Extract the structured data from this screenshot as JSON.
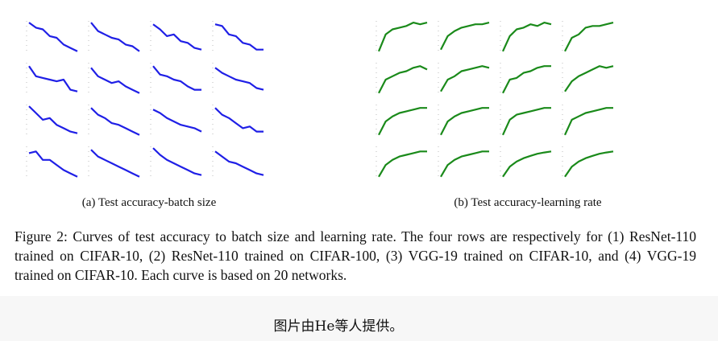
{
  "chart_data": [
    {
      "type": "line",
      "color": "#1f1fe6",
      "x": [
        1,
        2,
        3,
        4,
        5,
        6,
        7,
        8
      ],
      "values": [
        0.95,
        0.8,
        0.75,
        0.55,
        0.5,
        0.3,
        0.2,
        0.1
      ],
      "xlim": [
        1,
        8
      ],
      "ylim": [
        0,
        1
      ]
    },
    {
      "type": "line",
      "color": "#1f1fe6",
      "x": [
        1,
        2,
        3,
        4,
        5,
        6,
        7,
        8
      ],
      "values": [
        0.95,
        0.7,
        0.6,
        0.5,
        0.45,
        0.3,
        0.25,
        0.1
      ],
      "xlim": [
        1,
        8
      ],
      "ylim": [
        0,
        1
      ]
    },
    {
      "type": "line",
      "color": "#1f1fe6",
      "x": [
        1,
        2,
        3,
        4,
        5,
        6,
        7,
        8
      ],
      "values": [
        0.9,
        0.75,
        0.55,
        0.6,
        0.4,
        0.35,
        0.2,
        0.15
      ],
      "xlim": [
        1,
        8
      ],
      "ylim": [
        0,
        1
      ]
    },
    {
      "type": "line",
      "color": "#1f1fe6",
      "x": [
        1,
        2,
        3,
        4,
        5,
        6,
        7,
        8
      ],
      "values": [
        0.9,
        0.85,
        0.6,
        0.55,
        0.35,
        0.3,
        0.15,
        0.15
      ],
      "xlim": [
        1,
        8
      ],
      "ylim": [
        0,
        1
      ]
    },
    {
      "type": "line",
      "color": "#1f1fe6",
      "x": [
        1,
        2,
        3,
        4,
        5,
        6,
        7,
        8
      ],
      "values": [
        0.9,
        0.6,
        0.55,
        0.5,
        0.45,
        0.5,
        0.2,
        0.15
      ],
      "xlim": [
        1,
        8
      ],
      "ylim": [
        0,
        1
      ]
    },
    {
      "type": "line",
      "color": "#1f1fe6",
      "x": [
        1,
        2,
        3,
        4,
        5,
        6,
        7,
        8
      ],
      "values": [
        0.85,
        0.6,
        0.5,
        0.4,
        0.45,
        0.3,
        0.2,
        0.1
      ],
      "xlim": [
        1,
        8
      ],
      "ylim": [
        0,
        1
      ]
    },
    {
      "type": "line",
      "color": "#1f1fe6",
      "x": [
        1,
        2,
        3,
        4,
        5,
        6,
        7,
        8
      ],
      "values": [
        0.9,
        0.65,
        0.6,
        0.5,
        0.45,
        0.3,
        0.2,
        0.2
      ],
      "xlim": [
        1,
        8
      ],
      "ylim": [
        0,
        1
      ]
    },
    {
      "type": "line",
      "color": "#1f1fe6",
      "x": [
        1,
        2,
        3,
        4,
        5,
        6,
        7,
        8
      ],
      "values": [
        0.85,
        0.7,
        0.6,
        0.5,
        0.45,
        0.4,
        0.25,
        0.2
      ],
      "xlim": [
        1,
        8
      ],
      "ylim": [
        0,
        1
      ]
    },
    {
      "type": "line",
      "color": "#1f1fe6",
      "x": [
        1,
        2,
        3,
        4,
        5,
        6,
        7,
        8
      ],
      "values": [
        0.95,
        0.75,
        0.55,
        0.6,
        0.4,
        0.3,
        0.2,
        0.15
      ],
      "xlim": [
        1,
        8
      ],
      "ylim": [
        0,
        1
      ]
    },
    {
      "type": "line",
      "color": "#1f1fe6",
      "x": [
        1,
        2,
        3,
        4,
        5,
        6,
        7,
        8
      ],
      "values": [
        0.9,
        0.7,
        0.6,
        0.45,
        0.4,
        0.3,
        0.2,
        0.1
      ],
      "xlim": [
        1,
        8
      ],
      "ylim": [
        0,
        1
      ]
    },
    {
      "type": "line",
      "color": "#1f1fe6",
      "x": [
        1,
        2,
        3,
        4,
        5,
        6,
        7,
        8
      ],
      "values": [
        0.85,
        0.75,
        0.6,
        0.5,
        0.4,
        0.35,
        0.3,
        0.2
      ],
      "xlim": [
        1,
        8
      ],
      "ylim": [
        0,
        1
      ]
    },
    {
      "type": "line",
      "color": "#1f1fe6",
      "x": [
        1,
        2,
        3,
        4,
        5,
        6,
        7,
        8
      ],
      "values": [
        0.9,
        0.7,
        0.6,
        0.45,
        0.3,
        0.35,
        0.2,
        0.2
      ],
      "xlim": [
        1,
        8
      ],
      "ylim": [
        0,
        1
      ]
    },
    {
      "type": "line",
      "color": "#1f1fe6",
      "x": [
        1,
        2,
        3,
        4,
        5,
        6,
        7,
        8
      ],
      "values": [
        0.8,
        0.85,
        0.6,
        0.6,
        0.45,
        0.3,
        0.2,
        0.1
      ],
      "xlim": [
        1,
        8
      ],
      "ylim": [
        0,
        1
      ]
    },
    {
      "type": "line",
      "color": "#1f1fe6",
      "x": [
        1,
        2,
        3,
        4,
        5,
        6,
        7,
        8
      ],
      "values": [
        0.9,
        0.7,
        0.6,
        0.5,
        0.4,
        0.3,
        0.2,
        0.1
      ],
      "xlim": [
        1,
        8
      ],
      "ylim": [
        0,
        1
      ]
    },
    {
      "type": "line",
      "color": "#1f1fe6",
      "x": [
        1,
        2,
        3,
        4,
        5,
        6,
        7,
        8
      ],
      "values": [
        0.95,
        0.75,
        0.6,
        0.5,
        0.4,
        0.3,
        0.2,
        0.15
      ],
      "xlim": [
        1,
        8
      ],
      "ylim": [
        0,
        1
      ]
    },
    {
      "type": "line",
      "color": "#1f1fe6",
      "x": [
        1,
        2,
        3,
        4,
        5,
        6,
        7,
        8
      ],
      "values": [
        0.85,
        0.7,
        0.55,
        0.5,
        0.4,
        0.3,
        0.2,
        0.15
      ],
      "xlim": [
        1,
        8
      ],
      "ylim": [
        0,
        1
      ]
    },
    {
      "type": "line",
      "color": "#1a8a1a",
      "x": [
        1,
        2,
        3,
        4,
        5,
        6,
        7,
        8
      ],
      "values": [
        0.1,
        0.6,
        0.75,
        0.8,
        0.85,
        0.95,
        0.9,
        0.95
      ],
      "xlim": [
        1,
        8
      ],
      "ylim": [
        0,
        1
      ]
    },
    {
      "type": "line",
      "color": "#1a8a1a",
      "x": [
        1,
        2,
        3,
        4,
        5,
        6,
        7,
        8
      ],
      "values": [
        0.15,
        0.55,
        0.7,
        0.8,
        0.85,
        0.9,
        0.9,
        0.95
      ],
      "xlim": [
        1,
        8
      ],
      "ylim": [
        0,
        1
      ]
    },
    {
      "type": "line",
      "color": "#1a8a1a",
      "x": [
        1,
        2,
        3,
        4,
        5,
        6,
        7,
        8
      ],
      "values": [
        0.1,
        0.55,
        0.75,
        0.8,
        0.9,
        0.85,
        0.95,
        0.9
      ],
      "xlim": [
        1,
        8
      ],
      "ylim": [
        0,
        1
      ]
    },
    {
      "type": "line",
      "color": "#1a8a1a",
      "x": [
        1,
        2,
        3,
        4,
        5,
        6,
        7,
        8
      ],
      "values": [
        0.1,
        0.5,
        0.6,
        0.8,
        0.85,
        0.85,
        0.9,
        0.95
      ],
      "xlim": [
        1,
        8
      ],
      "ylim": [
        0,
        1
      ]
    },
    {
      "type": "line",
      "color": "#1a8a1a",
      "x": [
        1,
        2,
        3,
        4,
        5,
        6,
        7,
        8
      ],
      "values": [
        0.1,
        0.5,
        0.6,
        0.7,
        0.75,
        0.85,
        0.9,
        0.8
      ],
      "xlim": [
        1,
        8
      ],
      "ylim": [
        0,
        1
      ]
    },
    {
      "type": "line",
      "color": "#1a8a1a",
      "x": [
        1,
        2,
        3,
        4,
        5,
        6,
        7,
        8
      ],
      "values": [
        0.15,
        0.5,
        0.6,
        0.75,
        0.8,
        0.85,
        0.9,
        0.85
      ],
      "xlim": [
        1,
        8
      ],
      "ylim": [
        0,
        1
      ]
    },
    {
      "type": "line",
      "color": "#1a8a1a",
      "x": [
        1,
        2,
        3,
        4,
        5,
        6,
        7,
        8
      ],
      "values": [
        0.1,
        0.5,
        0.55,
        0.7,
        0.75,
        0.85,
        0.9,
        0.9
      ],
      "xlim": [
        1,
        8
      ],
      "ylim": [
        0,
        1
      ]
    },
    {
      "type": "line",
      "color": "#1a8a1a",
      "x": [
        1,
        2,
        3,
        4,
        5,
        6,
        7,
        8
      ],
      "values": [
        0.15,
        0.45,
        0.6,
        0.7,
        0.8,
        0.9,
        0.85,
        0.9
      ],
      "xlim": [
        1,
        8
      ],
      "ylim": [
        0,
        1
      ]
    },
    {
      "type": "line",
      "color": "#1a8a1a",
      "x": [
        1,
        2,
        3,
        4,
        5,
        6,
        7,
        8
      ],
      "values": [
        0.1,
        0.5,
        0.65,
        0.75,
        0.8,
        0.85,
        0.9,
        0.9
      ],
      "xlim": [
        1,
        8
      ],
      "ylim": [
        0,
        1
      ]
    },
    {
      "type": "line",
      "color": "#1a8a1a",
      "x": [
        1,
        2,
        3,
        4,
        5,
        6,
        7,
        8
      ],
      "values": [
        0.1,
        0.5,
        0.65,
        0.75,
        0.8,
        0.85,
        0.9,
        0.9
      ],
      "xlim": [
        1,
        8
      ],
      "ylim": [
        0,
        1
      ]
    },
    {
      "type": "line",
      "color": "#1a8a1a",
      "x": [
        1,
        2,
        3,
        4,
        5,
        6,
        7,
        8
      ],
      "values": [
        0.1,
        0.55,
        0.7,
        0.75,
        0.8,
        0.85,
        0.9,
        0.9
      ],
      "xlim": [
        1,
        8
      ],
      "ylim": [
        0,
        1
      ]
    },
    {
      "type": "line",
      "color": "#1a8a1a",
      "x": [
        1,
        2,
        3,
        4,
        5,
        6,
        7,
        8
      ],
      "values": [
        0.1,
        0.55,
        0.65,
        0.75,
        0.8,
        0.85,
        0.9,
        0.9
      ],
      "xlim": [
        1,
        8
      ],
      "ylim": [
        0,
        1
      ]
    },
    {
      "type": "line",
      "color": "#1a8a1a",
      "x": [
        1,
        2,
        3,
        4,
        5,
        6,
        7,
        8
      ],
      "values": [
        0.1,
        0.45,
        0.6,
        0.7,
        0.75,
        0.8,
        0.85,
        0.85
      ],
      "xlim": [
        1,
        8
      ],
      "ylim": [
        0,
        1
      ]
    },
    {
      "type": "line",
      "color": "#1a8a1a",
      "x": [
        1,
        2,
        3,
        4,
        5,
        6,
        7,
        8
      ],
      "values": [
        0.1,
        0.45,
        0.6,
        0.7,
        0.75,
        0.8,
        0.85,
        0.85
      ],
      "xlim": [
        1,
        8
      ],
      "ylim": [
        0,
        1
      ]
    },
    {
      "type": "line",
      "color": "#1a8a1a",
      "x": [
        1,
        2,
        3,
        4,
        5,
        6,
        7,
        8
      ],
      "values": [
        0.1,
        0.4,
        0.55,
        0.65,
        0.72,
        0.78,
        0.82,
        0.85
      ],
      "xlim": [
        1,
        8
      ],
      "ylim": [
        0,
        1
      ]
    },
    {
      "type": "line",
      "color": "#1a8a1a",
      "x": [
        1,
        2,
        3,
        4,
        5,
        6,
        7,
        8
      ],
      "values": [
        0.1,
        0.4,
        0.55,
        0.65,
        0.72,
        0.78,
        0.82,
        0.85
      ],
      "xlim": [
        1,
        8
      ],
      "ylim": [
        0,
        1
      ]
    }
  ],
  "figure": {
    "subcaptions": [
      "(a) Test accuracy-batch size",
      "(b) Test accuracy-learning rate"
    ],
    "caption": "Figure 2: Curves of test accuracy to batch size and learning rate. The four rows are respectively for (1) ResNet-110 trained on CIFAR-10, (2) ResNet-110 trained on CIFAR-100, (3) VGG-19 trained on CIFAR-10, and (4) VGG-19 trained on CIFAR-10. Each curve is based on 20 networks."
  },
  "note": "图片由He等人提供。"
}
